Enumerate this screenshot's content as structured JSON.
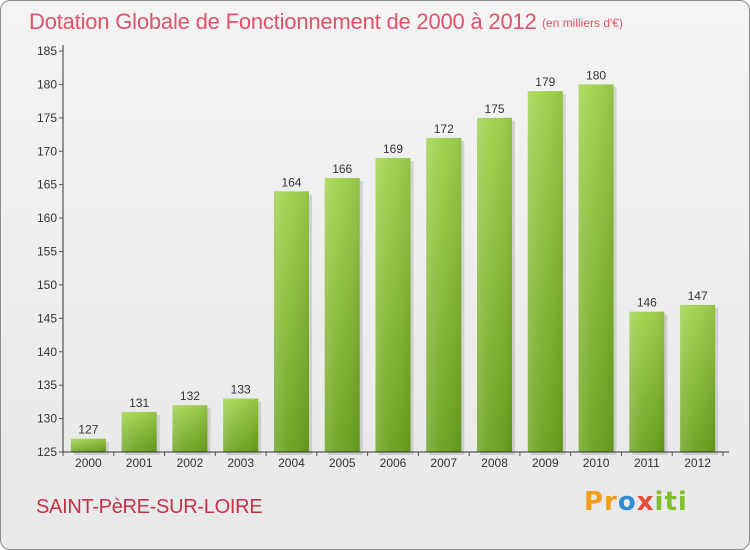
{
  "header": {
    "title": "Dotation Globale de Fonctionnement de 2000 à 2012",
    "unit_note": "(en milliers d'€)"
  },
  "footer": {
    "place_name": "SAINT-PèRE-SUR-LOIRE",
    "logo_text": "Proxiti"
  },
  "colors": {
    "bar_top": "#9fd24b",
    "bar_bottom": "#6aa11d",
    "axis": "#333333",
    "grid_tick": "#555555",
    "title": "#e0526a"
  },
  "chart_data": {
    "type": "bar",
    "title": "Dotation Globale de Fonctionnement de 2000 à 2012",
    "subtitle": "(en milliers d'€)",
    "xlabel": "",
    "ylabel": "",
    "categories": [
      "2000",
      "2001",
      "2002",
      "2003",
      "2004",
      "2005",
      "2006",
      "2007",
      "2008",
      "2009",
      "2010",
      "2011",
      "2012"
    ],
    "values": [
      127,
      131,
      132,
      133,
      164,
      166,
      169,
      172,
      175,
      179,
      180,
      146,
      147
    ],
    "ylim": [
      125,
      185
    ],
    "yticks": [
      125,
      130,
      135,
      140,
      145,
      150,
      155,
      160,
      165,
      170,
      175,
      180,
      185
    ],
    "data_labels": true,
    "grid": false,
    "legend": "none"
  }
}
